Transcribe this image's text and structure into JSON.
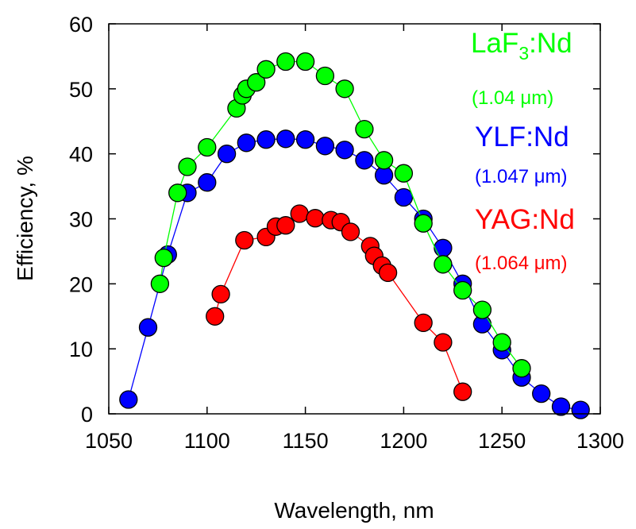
{
  "chart_data": {
    "type": "scatter",
    "xlabel": "Wavelength, nm",
    "ylabel": "Efficiency, %",
    "xlim": [
      1050,
      1300
    ],
    "ylim": [
      0,
      60
    ],
    "xticks": [
      1050,
      1100,
      1150,
      1200,
      1250,
      1300
    ],
    "yticks": [
      0,
      10,
      20,
      30,
      40,
      50,
      60
    ],
    "grid": false,
    "legend_placement": "right, inside plot",
    "series": [
      {
        "name": "YLF:Nd",
        "color": "#0000ff",
        "x": [
          1060,
          1070,
          1080,
          1090,
          1100,
          1110,
          1120,
          1130,
          1140,
          1150,
          1160,
          1170,
          1180,
          1190,
          1200,
          1210,
          1220,
          1230,
          1240,
          1250,
          1260,
          1270,
          1280,
          1290
        ],
        "y": [
          2.2,
          13.3,
          24.5,
          34.0,
          35.6,
          40.0,
          41.7,
          42.2,
          42.3,
          42.2,
          41.2,
          40.6,
          39.0,
          36.7,
          33.3,
          30.0,
          25.5,
          20.0,
          13.8,
          9.8,
          5.6,
          3.1,
          1.1,
          0.6
        ]
      },
      {
        "name": "LaF3:Nd",
        "color": "#00ff00",
        "x": [
          1076,
          1078,
          1085,
          1090,
          1100,
          1115,
          1118,
          1120,
          1125,
          1130,
          1140,
          1150,
          1160,
          1170,
          1180,
          1190,
          1200,
          1210,
          1220,
          1230,
          1240,
          1250,
          1260
        ],
        "y": [
          20.0,
          24.0,
          34.0,
          38.0,
          41.0,
          47.0,
          49.0,
          50.0,
          51.0,
          53.0,
          54.2,
          54.2,
          52.0,
          50.0,
          43.8,
          39.0,
          37.0,
          29.3,
          23.0,
          19.0,
          16.0,
          11.0,
          7.0
        ]
      },
      {
        "name": "YAG:Nd",
        "color": "#ff0000",
        "x": [
          1104,
          1107,
          1119,
          1130,
          1135,
          1140,
          1147,
          1155,
          1163,
          1168,
          1173,
          1183,
          1185,
          1189,
          1192,
          1210,
          1220,
          1230
        ],
        "y": [
          15.0,
          18.4,
          26.7,
          27.2,
          28.8,
          29.0,
          30.8,
          30.1,
          29.8,
          29.5,
          28.0,
          25.8,
          24.3,
          22.8,
          21.7,
          14.0,
          11.0,
          3.4
        ]
      }
    ],
    "annotations": [
      {
        "text": "LaF",
        "sub": "3",
        "rest": ":Nd",
        "color": "#00ff00"
      },
      {
        "text": "(1.04 μm)",
        "color": "#00ff00"
      },
      {
        "text": "YLF:Nd",
        "color": "#0000ff"
      },
      {
        "text": "(1.047 μm)",
        "color": "#0000ff"
      },
      {
        "text": "YAG:Nd",
        "color": "#ff0000"
      },
      {
        "text": "(1.064 μm)",
        "color": "#ff0000"
      }
    ]
  }
}
